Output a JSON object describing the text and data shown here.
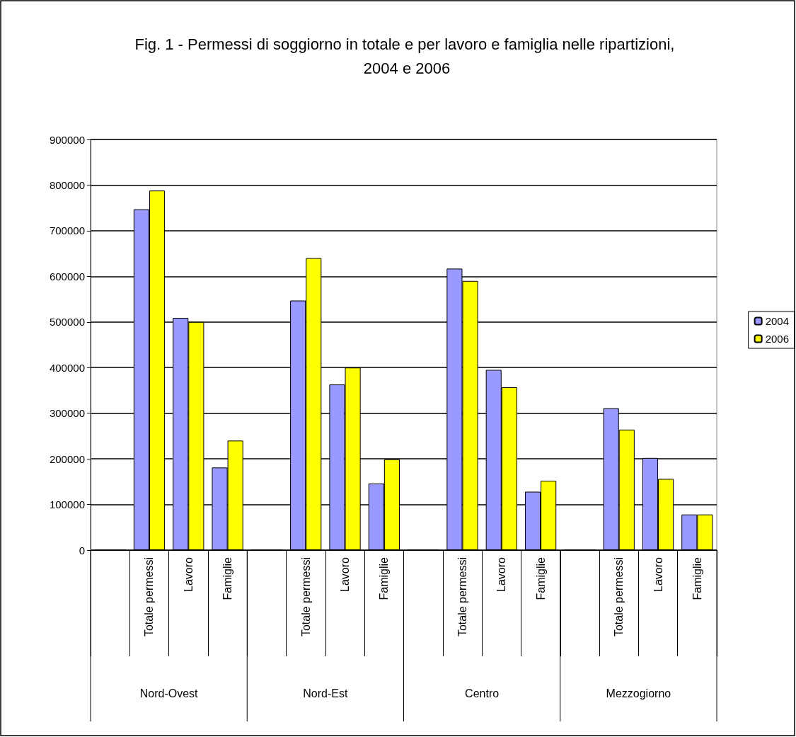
{
  "chart_data": {
    "type": "bar",
    "title": "Fig. 1 - Permessi di soggiorno in totale e per lavoro e famiglia nelle ripartizioni, 2004 e 2006",
    "categories": [
      null,
      "Totale permessi",
      "Lavoro",
      "Famiglie",
      null,
      "Totale permessi",
      "Lavoro",
      "Famiglie",
      null,
      "Totale permessi",
      "Lavoro",
      "Famiglie",
      null,
      "Totale permessi",
      "Lavoro",
      "Famiglie"
    ],
    "series": [
      {
        "name": "2004",
        "color": "#9999ff",
        "values": [
          0,
          747000,
          509000,
          181000,
          0,
          547000,
          363000,
          146000,
          0,
          617000,
          395000,
          128000,
          0,
          311000,
          202000,
          78000
        ]
      },
      {
        "name": "2006",
        "color": "#ffff00",
        "values": [
          0,
          788000,
          500000,
          240000,
          0,
          640000,
          400000,
          199000,
          0,
          590000,
          357000,
          152000,
          0,
          264000,
          156000,
          78000
        ]
      }
    ],
    "annotations": [
      "Nord-Ovest",
      "Nord-Est",
      "Centro",
      "Mezzogiorno"
    ],
    "ylim": [
      0,
      900000
    ],
    "yticks": [
      0,
      100000,
      200000,
      300000,
      400000,
      500000,
      600000,
      700000,
      800000,
      900000
    ],
    "grid": "y",
    "legend": "right"
  }
}
